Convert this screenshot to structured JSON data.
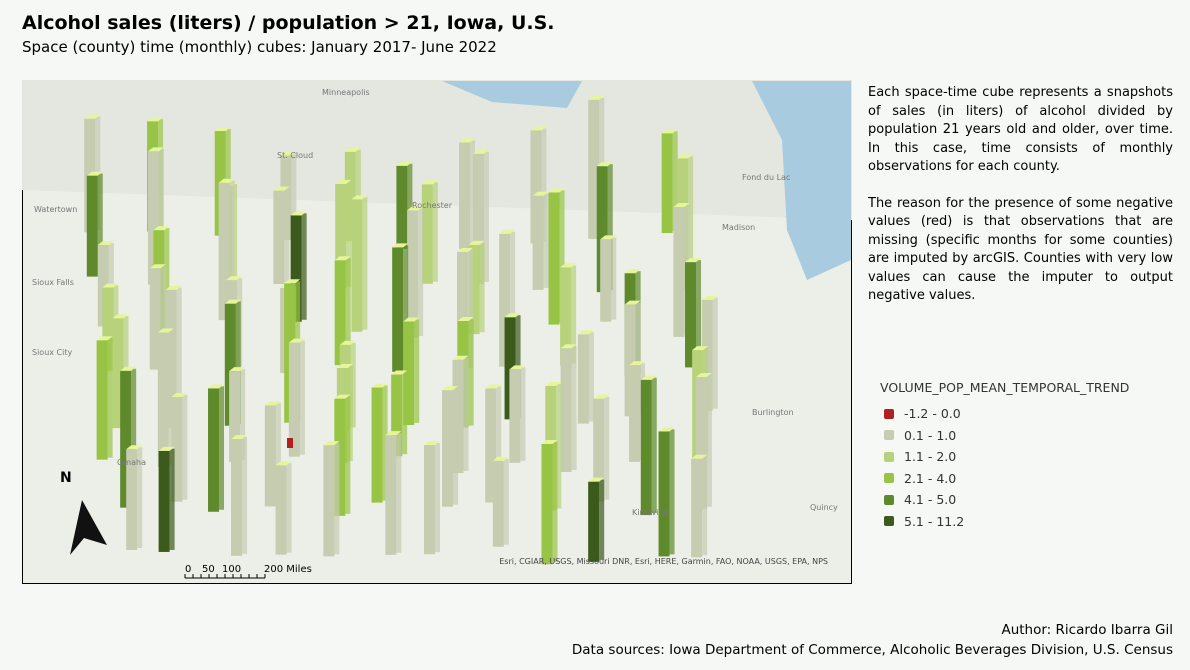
{
  "header": {
    "title": "Alcohol sales (liters) / population > 21, Iowa, U.S.",
    "subtitle": "Space (county) time (monthly) cubes: January 2017- June 2022"
  },
  "description": [
    "Each space-time cube represents a snapshots of sales (in liters) of alcohol divided by population 21 years old and older, over time. In this case, time consists of monthly observations for each county.",
    "The reason for the presence of some negative values (red) is that observations that are missing (specific months for some counties) are imputed by arcGIS. Counties with very low values can cause the imputer to output negative values."
  ],
  "legend": {
    "title": "VOLUME_POP_MEAN_TEMPORAL_TREND",
    "items": [
      {
        "label": "-1.2 - 0.0",
        "color": "#b02020"
      },
      {
        "label": "0.1 - 1.0",
        "color": "#c5ccb0"
      },
      {
        "label": "1.1 - 2.0",
        "color": "#b7d27a"
      },
      {
        "label": "2.1 - 4.0",
        "color": "#98c445"
      },
      {
        "label": "4.1 - 5.0",
        "color": "#5f8a2c"
      },
      {
        "label": "5.1 - 11.2",
        "color": "#3b5a1c"
      }
    ]
  },
  "map": {
    "places": [
      "Minneapolis",
      "St. Cloud",
      "Rochester",
      "Watertown",
      "Sioux Falls",
      "Sioux City",
      "Omaha",
      "Madison",
      "Fond du Lac",
      "Burlington",
      "Kirksville",
      "Quincy"
    ],
    "north": "N",
    "scale": [
      "0",
      "50",
      "100",
      "200 Miles"
    ],
    "attribution": "Esri, CGIAR, USGS, Missouri DNR, Esri, HERE, Garmin, FAO, NOAA, USGS, EPA, NPS"
  },
  "footer": {
    "author": "Author: Ricardo Ibarra Gil",
    "sources": "Data sources: Iowa Department of Commerce, Alcoholic Beverages Division, U.S. Census"
  }
}
